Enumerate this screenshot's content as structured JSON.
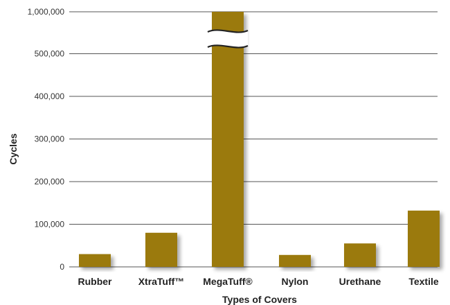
{
  "chart_data": {
    "type": "bar",
    "title": "",
    "xlabel": "Types of Covers",
    "ylabel": "Cycles",
    "categories": [
      "Rubber",
      "XtraTuff™",
      "MegaTuff®",
      "Nylon",
      "Urethane",
      "Textile"
    ],
    "values": [
      30000,
      80000,
      1000000,
      28000,
      55000,
      132000
    ],
    "ylim": [
      0,
      1000000
    ],
    "axis_break": [
      500000,
      1000000
    ],
    "yticks": [
      0,
      100000,
      200000,
      300000,
      400000,
      500000,
      1000000
    ],
    "ytick_labels": [
      "0",
      "100,000",
      "200,000",
      "300,000",
      "400,000",
      "500,000",
      "1,000,000"
    ],
    "grid": true,
    "legend": "none",
    "bar_color": "#9b7a0c",
    "shadow_color": "#cccccc"
  }
}
